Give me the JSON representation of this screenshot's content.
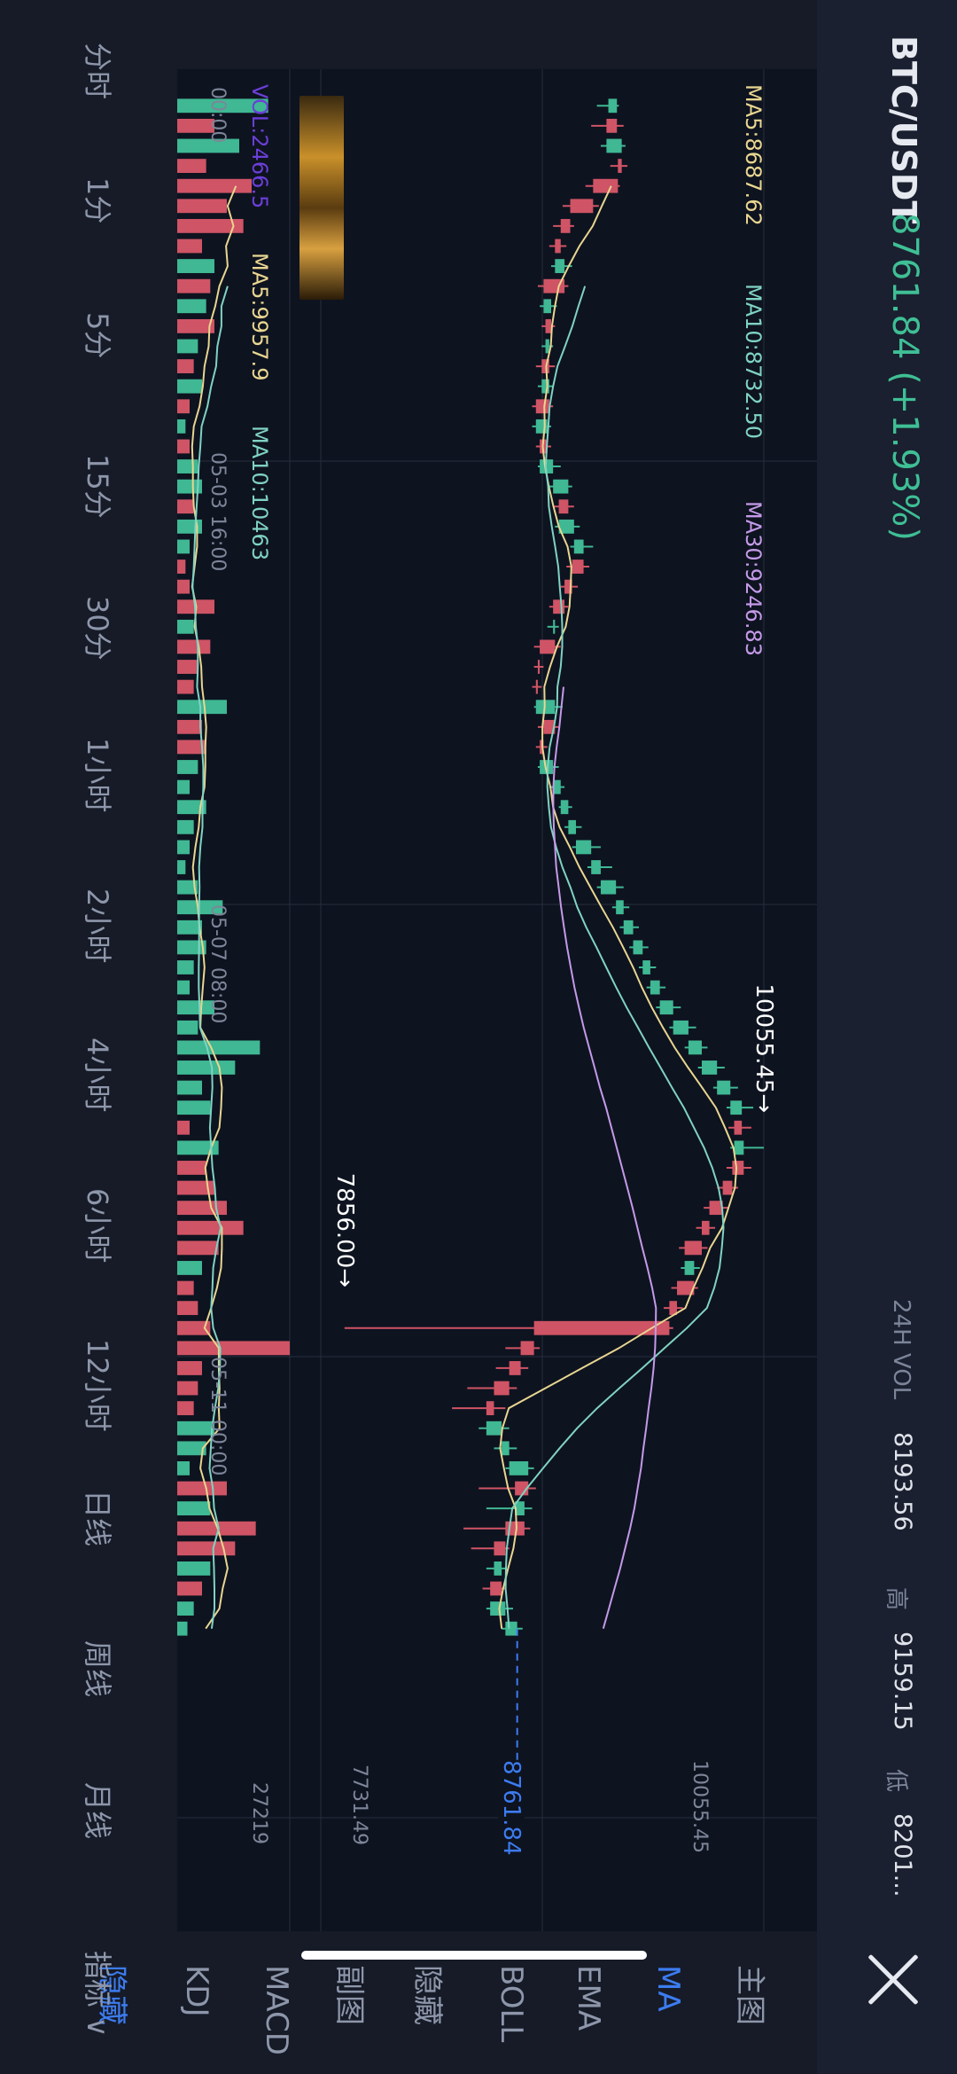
{
  "header": {
    "pair": "BTC/USDT",
    "price_change": "8761.84  (+1.93%)",
    "vol_label": "24H VOL",
    "vol_value": "8193.56",
    "high_label": "高",
    "high_value": "9159.15",
    "low_label": "低",
    "low_value": "8201..."
  },
  "ma_legend": {
    "ma5": "MA5:8687.62",
    "ma10": "MA10:8732.50",
    "ma30": "MA30:9246.83"
  },
  "vol_legend": {
    "vol": "VOL:2466.5",
    "ma5": "MA5:9957.9",
    "ma10": "MA10:10463"
  },
  "axis": {
    "price_high": "10055.45",
    "price_last": "8761.84",
    "price_low": "7731.49",
    "vol_max": "27219",
    "time_labels": [
      "00:00",
      "05-03 16:00",
      "05-07 08:00",
      "05-11 00:00"
    ]
  },
  "annotations": {
    "high_marker": "10055.45→",
    "low_marker": "7856.00→"
  },
  "timeframes": [
    "分时",
    "1分",
    "5分",
    "15分",
    "30分",
    "1小时",
    "2小时",
    "4小时",
    "6小时",
    "12小时",
    "日线",
    "周线",
    "月线",
    "指标 ∨"
  ],
  "sidebar": {
    "main_label": "主图",
    "main_options": [
      "MA",
      "EMA",
      "BOLL",
      "隐藏"
    ],
    "sub_label": "副图",
    "sub_options": [
      "MACD",
      "KDJ",
      "隐藏"
    ]
  },
  "colors": {
    "up": "#3fb893",
    "down": "#cf5465",
    "ma5": "#e8d690",
    "ma10": "#7fd3c2",
    "ma30": "#c49ae8",
    "accent": "#3c7cf0"
  },
  "chart_data": {
    "type": "candlestick",
    "price_range": [
      7731.49,
      10055.45
    ],
    "last_price": 8761.84,
    "candles": [
      {
        "o": 9240,
        "c": 9285,
        "h": 9295,
        "l": 9180
      },
      {
        "o": 9285,
        "c": 9230,
        "h": 9320,
        "l": 9150
      },
      {
        "o": 9230,
        "c": 9310,
        "h": 9330,
        "l": 9200
      },
      {
        "o": 9310,
        "c": 9290,
        "h": 9340,
        "l": 9250
      },
      {
        "o": 9290,
        "c": 9160,
        "h": 9300,
        "l": 9120
      },
      {
        "o": 9160,
        "c": 9040,
        "h": 9190,
        "l": 9000
      },
      {
        "o": 9040,
        "c": 8990,
        "h": 9060,
        "l": 8950
      },
      {
        "o": 8990,
        "c": 8960,
        "h": 9020,
        "l": 8930
      },
      {
        "o": 8960,
        "c": 9010,
        "h": 9050,
        "l": 8940
      },
      {
        "o": 9010,
        "c": 8900,
        "h": 9030,
        "l": 8870
      },
      {
        "o": 8900,
        "c": 8940,
        "h": 8970,
        "l": 8880
      },
      {
        "o": 8940,
        "c": 8910,
        "h": 8960,
        "l": 8890
      },
      {
        "o": 8910,
        "c": 8930,
        "h": 8950,
        "l": 8890
      },
      {
        "o": 8930,
        "c": 8890,
        "h": 8960,
        "l": 8860
      },
      {
        "o": 8890,
        "c": 8930,
        "h": 8950,
        "l": 8870
      },
      {
        "o": 8930,
        "c": 8860,
        "h": 8950,
        "l": 8840
      },
      {
        "o": 8860,
        "c": 8920,
        "h": 8940,
        "l": 8840
      },
      {
        "o": 8920,
        "c": 8880,
        "h": 8940,
        "l": 8860
      },
      {
        "o": 8880,
        "c": 8950,
        "h": 8990,
        "l": 8870
      },
      {
        "o": 8950,
        "c": 9030,
        "h": 9050,
        "l": 8930
      },
      {
        "o": 9030,
        "c": 8980,
        "h": 9060,
        "l": 8950
      },
      {
        "o": 8980,
        "c": 9060,
        "h": 9090,
        "l": 8960
      },
      {
        "o": 9060,
        "c": 9110,
        "h": 9160,
        "l": 9040
      },
      {
        "o": 9110,
        "c": 9050,
        "h": 9140,
        "l": 9020
      },
      {
        "o": 9050,
        "c": 9010,
        "h": 9080,
        "l": 8990
      },
      {
        "o": 9010,
        "c": 8950,
        "h": 9030,
        "l": 8930
      },
      {
        "o": 8950,
        "c": 8960,
        "h": 8980,
        "l": 8920
      },
      {
        "o": 8960,
        "c": 8880,
        "h": 8990,
        "l": 8850
      },
      {
        "o": 8880,
        "c": 8870,
        "h": 8900,
        "l": 8850
      },
      {
        "o": 8870,
        "c": 8860,
        "h": 8890,
        "l": 8840
      },
      {
        "o": 8860,
        "c": 8960,
        "h": 9000,
        "l": 8850
      },
      {
        "o": 8960,
        "c": 8900,
        "h": 8980,
        "l": 8870
      },
      {
        "o": 8900,
        "c": 8880,
        "h": 8920,
        "l": 8860
      },
      {
        "o": 8880,
        "c": 8950,
        "h": 8980,
        "l": 8870
      },
      {
        "o": 8950,
        "c": 8990,
        "h": 9010,
        "l": 8930
      },
      {
        "o": 8990,
        "c": 9030,
        "h": 9050,
        "l": 8980
      },
      {
        "o": 9030,
        "c": 9070,
        "h": 9100,
        "l": 9010
      },
      {
        "o": 9070,
        "c": 9150,
        "h": 9200,
        "l": 9050
      },
      {
        "o": 9150,
        "c": 9200,
        "h": 9260,
        "l": 9130
      },
      {
        "o": 9200,
        "c": 9280,
        "h": 9320,
        "l": 9180
      },
      {
        "o": 9280,
        "c": 9320,
        "h": 9350,
        "l": 9260
      },
      {
        "o": 9320,
        "c": 9370,
        "h": 9400,
        "l": 9300
      },
      {
        "o": 9370,
        "c": 9420,
        "h": 9450,
        "l": 9350
      },
      {
        "o": 9420,
        "c": 9460,
        "h": 9490,
        "l": 9400
      },
      {
        "o": 9460,
        "c": 9510,
        "h": 9540,
        "l": 9440
      },
      {
        "o": 9510,
        "c": 9580,
        "h": 9620,
        "l": 9490
      },
      {
        "o": 9580,
        "c": 9660,
        "h": 9700,
        "l": 9560
      },
      {
        "o": 9660,
        "c": 9730,
        "h": 9760,
        "l": 9640
      },
      {
        "o": 9730,
        "c": 9810,
        "h": 9850,
        "l": 9710
      },
      {
        "o": 9810,
        "c": 9880,
        "h": 9920,
        "l": 9790
      },
      {
        "o": 9880,
        "c": 9940,
        "h": 10000,
        "l": 9860
      },
      {
        "o": 9940,
        "c": 9900,
        "h": 9990,
        "l": 9870
      },
      {
        "o": 9900,
        "c": 9950,
        "h": 10055.45,
        "l": 9880
      },
      {
        "o": 9950,
        "c": 9890,
        "h": 9990,
        "l": 9860
      },
      {
        "o": 9890,
        "c": 9840,
        "h": 9920,
        "l": 9810
      },
      {
        "o": 9840,
        "c": 9770,
        "h": 9870,
        "l": 9740
      },
      {
        "o": 9770,
        "c": 9730,
        "h": 9800,
        "l": 9700
      },
      {
        "o": 9730,
        "c": 9640,
        "h": 9760,
        "l": 9610
      },
      {
        "o": 9640,
        "c": 9690,
        "h": 9720,
        "l": 9620
      },
      {
        "o": 9690,
        "c": 9600,
        "h": 9710,
        "l": 9570
      },
      {
        "o": 9600,
        "c": 9560,
        "h": 9630,
        "l": 9530
      },
      {
        "o": 9560,
        "c": 8850,
        "h": 9580,
        "l": 7856.0
      },
      {
        "o": 8850,
        "c": 8780,
        "h": 8880,
        "l": 8700
      },
      {
        "o": 8780,
        "c": 8720,
        "h": 8820,
        "l": 8650
      },
      {
        "o": 8720,
        "c": 8640,
        "h": 8760,
        "l": 8500
      },
      {
        "o": 8640,
        "c": 8600,
        "h": 8700,
        "l": 8420
      },
      {
        "o": 8600,
        "c": 8680,
        "h": 8720,
        "l": 8560
      },
      {
        "o": 8680,
        "c": 8720,
        "h": 8760,
        "l": 8640
      },
      {
        "o": 8720,
        "c": 8820,
        "h": 8850,
        "l": 8700
      },
      {
        "o": 8820,
        "c": 8750,
        "h": 8860,
        "l": 8560
      },
      {
        "o": 8750,
        "c": 8800,
        "h": 8840,
        "l": 8600
      },
      {
        "o": 8800,
        "c": 8700,
        "h": 8830,
        "l": 8480
      },
      {
        "o": 8700,
        "c": 8640,
        "h": 8720,
        "l": 8520
      },
      {
        "o": 8640,
        "c": 8680,
        "h": 8700,
        "l": 8600
      },
      {
        "o": 8680,
        "c": 8620,
        "h": 8700,
        "l": 8580
      },
      {
        "o": 8620,
        "c": 8700,
        "h": 8740,
        "l": 8600
      },
      {
        "o": 8700,
        "c": 8761.84,
        "h": 8790,
        "l": 8680
      }
    ],
    "volume": [
      22000,
      9000,
      15000,
      7000,
      18000,
      12000,
      16000,
      6000,
      9000,
      8000,
      7000,
      9000,
      5000,
      4000,
      6000,
      3000,
      2000,
      3000,
      5000,
      6000,
      4000,
      6000,
      3000,
      2000,
      3000,
      9000,
      4000,
      8000,
      5000,
      4000,
      12000,
      6000,
      7000,
      5000,
      3000,
      7000,
      4000,
      3000,
      2000,
      5000,
      11000,
      6000,
      7000,
      4000,
      3000,
      9000,
      5000,
      20000,
      14000,
      6000,
      8000,
      3000,
      10000,
      7000,
      9000,
      12000,
      16000,
      10000,
      6000,
      4000,
      5000,
      8000,
      27219,
      6000,
      5000,
      4000,
      9000,
      7000,
      3000,
      12000,
      8000,
      19000,
      14000,
      8000,
      6000,
      4000,
      2466.5
    ],
    "vol_range": [
      0,
      27219
    ],
    "series": [
      {
        "name": "MA5"
      },
      {
        "name": "MA10"
      },
      {
        "name": "MA30"
      }
    ]
  }
}
